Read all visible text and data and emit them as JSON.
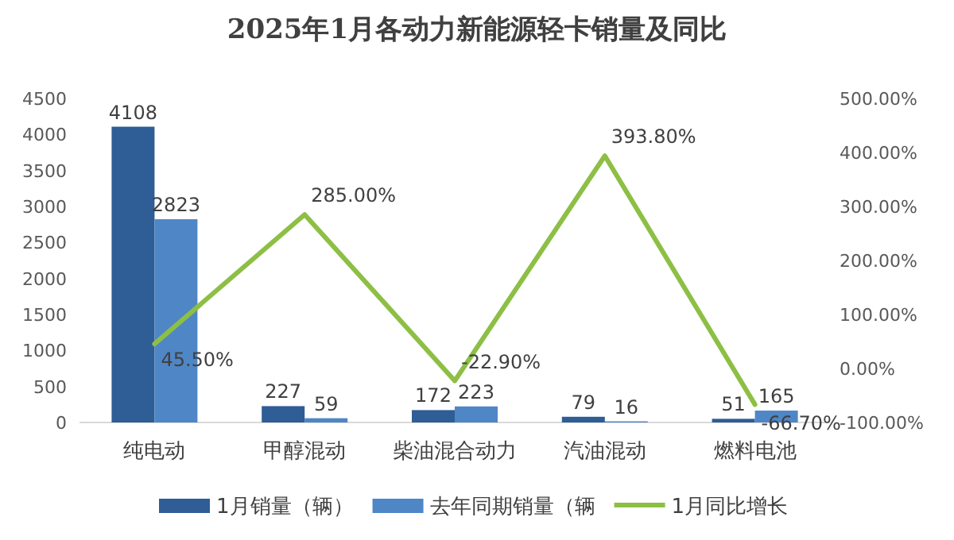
{
  "chart_data": {
    "type": "bar",
    "title": "2025年1月各动力新能源轻卡销量及同比",
    "categories": [
      "纯电动",
      "甲醇混动",
      "柴油混合动力",
      "汽油混动",
      "燃料电池"
    ],
    "series": [
      {
        "name": "1月销量（辆）",
        "color": "#2f5d95",
        "values": [
          4108,
          227,
          172,
          79,
          51
        ]
      },
      {
        "name": "去年同期销量（辆",
        "color": "#4f86c6",
        "values": [
          2823,
          59,
          223,
          16,
          165
        ]
      },
      {
        "name": "1月同比增长",
        "type": "line",
        "axis": "y2",
        "color": "#8dbf45",
        "marker": "none",
        "values": [
          45.5,
          285,
          -22.9,
          393.8,
          -66.7
        ],
        "value_labels": [
          "45.50%",
          "285.00%",
          "-22.90%",
          "393.80%",
          "-66.70%"
        ]
      }
    ],
    "data_labels": true,
    "ylim": [
      0,
      4500
    ],
    "yticks": [
      0,
      500,
      1000,
      1500,
      2000,
      2500,
      3000,
      3500,
      4000,
      4500
    ],
    "y2lim": [
      -100,
      500
    ],
    "y2ticks": [
      {
        "value": -100,
        "label": "-100.00%"
      },
      {
        "value": 0,
        "label": "0.00%"
      },
      {
        "value": 100,
        "label": "100.00%"
      },
      {
        "value": 200,
        "label": "200.00%"
      },
      {
        "value": 300,
        "label": "300.00%"
      },
      {
        "value": 400,
        "label": "400.00%"
      },
      {
        "value": 500,
        "label": "500.00%"
      }
    ],
    "grid": false,
    "legend": "bottom"
  }
}
